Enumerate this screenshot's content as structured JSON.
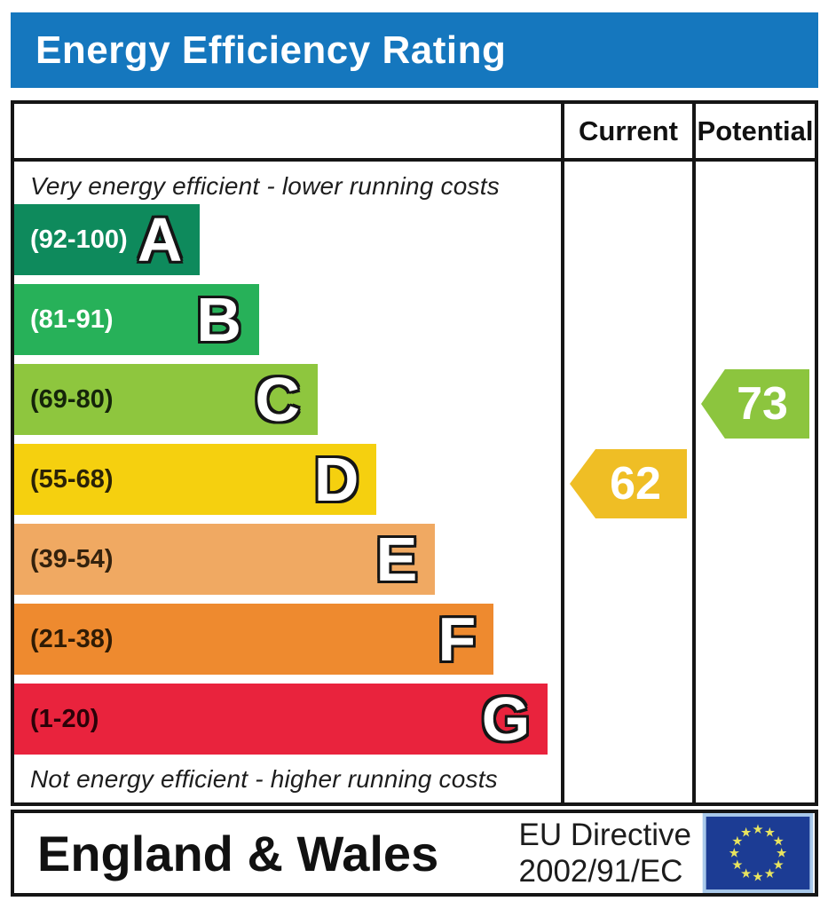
{
  "title": "Energy Efficiency Rating",
  "colors": {
    "title_bar_bg": "#1577be",
    "title_text": "#ffffff",
    "border": "#151515",
    "current_arrow": "#efbe25",
    "potential_arrow": "#8cc53e"
  },
  "table": {
    "current_header": "Current",
    "potential_header": "Potential",
    "top_caption": "Very energy efficient - lower running costs",
    "bottom_caption": "Not energy efficient - higher running costs",
    "bands": [
      {
        "letter": "A",
        "range_label": "(92-100)",
        "min": 92,
        "max": 100,
        "color": "#0e8a5c",
        "label_color": "#ffffff",
        "width_pct": 34.0
      },
      {
        "letter": "B",
        "range_label": "(81-91)",
        "min": 81,
        "max": 91,
        "color": "#27b159",
        "label_color": "#ffffff",
        "width_pct": 44.8
      },
      {
        "letter": "C",
        "range_label": "(69-80)",
        "min": 69,
        "max": 80,
        "color": "#8ec63e",
        "label_color": "#15240a",
        "width_pct": 55.5
      },
      {
        "letter": "D",
        "range_label": "(55-68)",
        "min": 55,
        "max": 68,
        "color": "#f5d00f",
        "label_color": "#2a2207",
        "width_pct": 66.3
      },
      {
        "letter": "E",
        "range_label": "(39-54)",
        "min": 39,
        "max": 54,
        "color": "#f0a962",
        "label_color": "#34220d",
        "width_pct": 77.0
      },
      {
        "letter": "F",
        "range_label": "(21-38)",
        "min": 21,
        "max": 38,
        "color": "#ee8a2f",
        "label_color": "#2f1b05",
        "width_pct": 87.7
      },
      {
        "letter": "G",
        "range_label": "(1-20)",
        "min": 1,
        "max": 20,
        "color": "#e9233d",
        "label_color": "#2b0208",
        "width_pct": 97.6
      }
    ],
    "current": {
      "value": "62",
      "band": "D"
    },
    "potential": {
      "value": "73",
      "band": "C"
    }
  },
  "footer": {
    "region": "England & Wales",
    "directive_line1": "EU Directive",
    "directive_line2": "2002/91/EC",
    "eu_flag": {
      "field": "#1c3c94",
      "stars": "#e8e45f",
      "border": "#a9c9ea"
    }
  },
  "chart_data": {
    "type": "bar",
    "title": "Energy Efficiency Rating",
    "orientation": "horizontal",
    "categories": [
      "A",
      "B",
      "C",
      "D",
      "E",
      "F",
      "G"
    ],
    "band_ranges": [
      [
        92,
        100
      ],
      [
        81,
        91
      ],
      [
        69,
        80
      ],
      [
        55,
        68
      ],
      [
        39,
        54
      ],
      [
        21,
        38
      ],
      [
        1,
        20
      ]
    ],
    "band_colors": [
      "#0e8a5c",
      "#27b159",
      "#8ec63e",
      "#f5d00f",
      "#f0a962",
      "#ee8a2f",
      "#e9233d"
    ],
    "bar_length_pct": [
      34.0,
      44.8,
      55.5,
      66.3,
      77.0,
      87.7,
      97.6
    ],
    "value_scale": [
      1,
      100
    ],
    "markers": [
      {
        "name": "Current",
        "value": 62,
        "band": "D",
        "color": "#efbe25"
      },
      {
        "name": "Potential",
        "value": 73,
        "band": "C",
        "color": "#8cc53e"
      }
    ],
    "top_caption": "Very energy efficient - lower running costs",
    "bottom_caption": "Not energy efficient - higher running costs",
    "footer_left": "England & Wales",
    "footer_right": "EU Directive 2002/91/EC"
  }
}
